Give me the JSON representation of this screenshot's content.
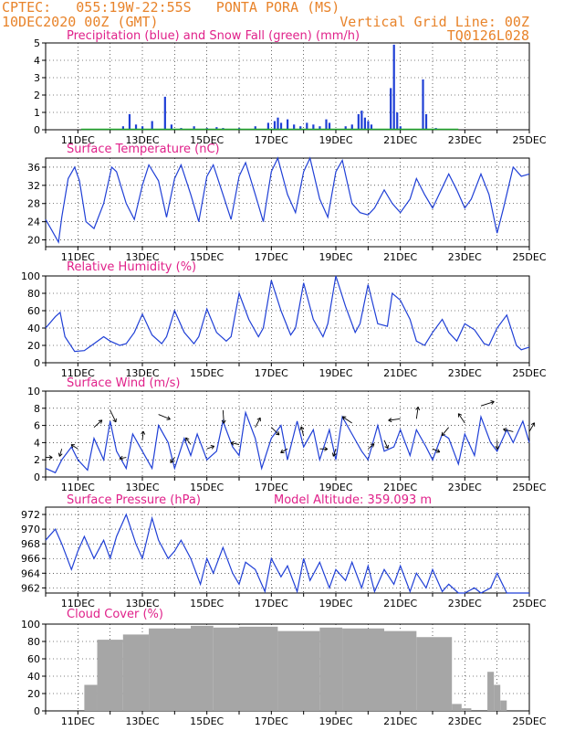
{
  "header": {
    "line1": "CPTEC:   055:19W-22:55S   PONTA PORA (MS)",
    "line2": "10DEC2020 00Z (GMT)",
    "grid_note": "Vertical Grid Line: 00Z",
    "code": "TQ0126L028"
  },
  "colors": {
    "header": "#e8832a",
    "title": "#e0218a",
    "line": "#1f3fd6",
    "precip": "#1f3fd6",
    "snow": "#21a32c",
    "cloud": "#a6a6a6",
    "wind_arrow": "#000000"
  },
  "chart_data": [
    {
      "type": "bar",
      "title": "Precipitation (blue) and Snow Fall (green) (mm/h)",
      "x_tick_labels": [
        "11DEC",
        "13DEC",
        "15DEC",
        "17DEC",
        "19DEC",
        "21DEC",
        "23DEC",
        "25DEC"
      ],
      "y_ticks": [
        0,
        1,
        2,
        3,
        4,
        5
      ],
      "ylim": [
        0,
        5
      ],
      "grid": "dotted",
      "series": [
        {
          "name": "Precipitation",
          "color": "#1f3fd6",
          "values": [
            [
              2.4,
              0.2
            ],
            [
              2.6,
              0.9
            ],
            [
              2.8,
              0.3
            ],
            [
              3.0,
              0.2
            ],
            [
              3.3,
              0.5
            ],
            [
              3.7,
              1.9
            ],
            [
              3.9,
              0.3
            ],
            [
              4.2,
              0.1
            ],
            [
              4.6,
              0.2
            ],
            [
              5.0,
              0.1
            ],
            [
              5.3,
              0.15
            ],
            [
              5.5,
              0.1
            ],
            [
              6.0,
              0.1
            ],
            [
              6.5,
              0.2
            ],
            [
              6.9,
              0.4
            ],
            [
              7.1,
              0.5
            ],
            [
              7.2,
              0.7
            ],
            [
              7.3,
              0.4
            ],
            [
              7.5,
              0.6
            ],
            [
              7.7,
              0.3
            ],
            [
              7.9,
              0.2
            ],
            [
              8.1,
              0.4
            ],
            [
              8.3,
              0.3
            ],
            [
              8.5,
              0.2
            ],
            [
              8.7,
              0.6
            ],
            [
              8.8,
              0.4
            ],
            [
              9.3,
              0.2
            ],
            [
              9.5,
              0.3
            ],
            [
              9.7,
              0.9
            ],
            [
              9.8,
              1.1
            ],
            [
              9.9,
              0.7
            ],
            [
              10.0,
              0.5
            ],
            [
              10.1,
              0.3
            ],
            [
              10.7,
              2.4
            ],
            [
              10.8,
              4.9
            ],
            [
              10.9,
              1.0
            ],
            [
              11.0,
              0.2
            ],
            [
              11.7,
              2.9
            ],
            [
              11.8,
              0.9
            ],
            [
              12.1,
              0.1
            ]
          ]
        },
        {
          "name": "Snow Fall",
          "color": "#21a32c",
          "values": []
        }
      ]
    },
    {
      "type": "line",
      "title": "Surface Temperature (nC)",
      "x_tick_labels": [
        "11DEC",
        "13DEC",
        "15DEC",
        "17DEC",
        "19DEC",
        "21DEC",
        "23DEC",
        "25DEC"
      ],
      "y_ticks": [
        20,
        24,
        28,
        32,
        36
      ],
      "ylim": [
        18.5,
        38
      ],
      "x": [
        0,
        0.2,
        0.4,
        0.5,
        0.7,
        0.9,
        1.05,
        1.25,
        1.5,
        1.8,
        2.05,
        2.2,
        2.5,
        2.75,
        3.0,
        3.2,
        3.5,
        3.75,
        4.0,
        4.2,
        4.5,
        4.75,
        5.0,
        5.2,
        5.5,
        5.75,
        6.0,
        6.2,
        6.5,
        6.75,
        7.0,
        7.2,
        7.5,
        7.75,
        8.0,
        8.2,
        8.5,
        8.75,
        9.0,
        9.2,
        9.5,
        9.75,
        10.0,
        10.2,
        10.5,
        10.75,
        11.0,
        11.3,
        11.5,
        11.75,
        12.0,
        12.2,
        12.5,
        12.75,
        13.0,
        13.2,
        13.5,
        13.75,
        14.0,
        14.2,
        14.5,
        14.75,
        15.0
      ],
      "values": [
        24.5,
        22.0,
        19.5,
        25.0,
        33.5,
        36.0,
        33.0,
        24.0,
        22.5,
        28.0,
        36.0,
        35.0,
        28.0,
        24.5,
        32.0,
        36.5,
        33.0,
        25.0,
        33.5,
        36.5,
        30.0,
        24.0,
        34.0,
        36.5,
        30.0,
        24.5,
        34.0,
        37.0,
        30.0,
        24.0,
        35.0,
        38.0,
        30.0,
        26.0,
        35.0,
        38.0,
        29.0,
        25.0,
        35.0,
        37.5,
        28.0,
        26.0,
        25.5,
        27.0,
        31.0,
        28.0,
        26.0,
        29.0,
        33.5,
        30.0,
        27.0,
        30.0,
        34.5,
        31.0,
        27.0,
        29.0,
        34.5,
        30.0,
        21.5,
        27.0,
        36.0,
        34.0,
        34.5
      ]
    },
    {
      "type": "line",
      "title": "Relative Humidity (%)",
      "x_tick_labels": [
        "11DEC",
        "13DEC",
        "15DEC",
        "17DEC",
        "19DEC",
        "21DEC",
        "23DEC",
        "25DEC"
      ],
      "y_ticks": [
        0,
        20,
        40,
        60,
        80,
        100
      ],
      "ylim": [
        0,
        100
      ],
      "x": [
        0,
        0.3,
        0.45,
        0.6,
        0.9,
        1.2,
        1.5,
        1.8,
        2.0,
        2.3,
        2.5,
        2.75,
        3.0,
        3.3,
        3.6,
        3.75,
        4.0,
        4.3,
        4.6,
        4.75,
        5.0,
        5.3,
        5.6,
        5.75,
        6.0,
        6.3,
        6.6,
        6.75,
        7.0,
        7.3,
        7.6,
        7.75,
        8.0,
        8.3,
        8.6,
        8.75,
        9.0,
        9.3,
        9.6,
        9.75,
        10.0,
        10.3,
        10.6,
        10.75,
        11.0,
        11.3,
        11.5,
        11.75,
        12.0,
        12.3,
        12.5,
        12.75,
        13.0,
        13.3,
        13.6,
        13.75,
        14.0,
        14.3,
        14.6,
        14.75,
        15.0
      ],
      "values": [
        40,
        53,
        58,
        30,
        13,
        14,
        22,
        30,
        25,
        20,
        22,
        35,
        56,
        32,
        22,
        30,
        60,
        35,
        22,
        30,
        62,
        35,
        25,
        30,
        80,
        50,
        30,
        40,
        95,
        60,
        32,
        40,
        92,
        50,
        30,
        45,
        100,
        65,
        35,
        45,
        90,
        45,
        42,
        80,
        72,
        50,
        25,
        20,
        35,
        50,
        35,
        25,
        45,
        38,
        22,
        20,
        40,
        55,
        20,
        15,
        18
      ]
    },
    {
      "type": "line",
      "title": "Surface Wind (m/s)",
      "x_tick_labels": [
        "11DEC",
        "13DEC",
        "15DEC",
        "17DEC",
        "19DEC",
        "21DEC",
        "23DEC",
        "25DEC"
      ],
      "y_ticks": [
        0,
        2,
        4,
        6,
        8,
        10
      ],
      "ylim": [
        0,
        10
      ],
      "x": [
        0,
        0.3,
        0.5,
        0.8,
        1.0,
        1.3,
        1.5,
        1.8,
        2.0,
        2.2,
        2.5,
        2.7,
        3.0,
        3.3,
        3.5,
        3.8,
        4.0,
        4.3,
        4.5,
        4.7,
        5.0,
        5.3,
        5.5,
        5.8,
        6.0,
        6.2,
        6.5,
        6.7,
        7.0,
        7.3,
        7.5,
        7.8,
        8.0,
        8.3,
        8.5,
        8.8,
        9.0,
        9.2,
        9.5,
        9.8,
        10.0,
        10.3,
        10.5,
        10.8,
        11.0,
        11.3,
        11.5,
        11.8,
        12.0,
        12.3,
        12.5,
        12.8,
        13.0,
        13.3,
        13.5,
        13.8,
        14.0,
        14.3,
        14.5,
        14.8,
        15.0
      ],
      "values": [
        1.0,
        0.5,
        2.0,
        3.5,
        2.0,
        0.8,
        4.5,
        2.0,
        6.5,
        3.0,
        1.0,
        5.0,
        3.0,
        1.0,
        6.0,
        4.0,
        1.0,
        4.5,
        2.5,
        5.0,
        2.0,
        3.0,
        6.5,
        3.5,
        2.5,
        7.5,
        4.5,
        1.0,
        4.5,
        6.0,
        2.0,
        6.5,
        3.5,
        5.5,
        2.0,
        5.5,
        2.0,
        7.0,
        5.0,
        3.0,
        2.0,
        6.0,
        3.0,
        3.5,
        5.5,
        2.5,
        5.5,
        3.5,
        2.0,
        5.0,
        4.5,
        1.5,
        5.0,
        2.5,
        7.0,
        4.0,
        3.0,
        5.5,
        4.0,
        6.5,
        4.0
      ],
      "arrows": "wind direction arrows plotted along the series"
    },
    {
      "type": "line",
      "title": "Surface Pressure (hPa)",
      "annotation": "Model Altitude: 359.093 m",
      "x_tick_labels": [
        "11DEC",
        "13DEC",
        "15DEC",
        "17DEC",
        "19DEC",
        "21DEC",
        "23DEC",
        "25DEC"
      ],
      "y_ticks": [
        962,
        964,
        966,
        968,
        970,
        972
      ],
      "ylim": [
        961.3,
        973
      ],
      "x": [
        0,
        0.3,
        0.5,
        0.8,
        1.0,
        1.2,
        1.5,
        1.8,
        2.0,
        2.2,
        2.5,
        2.8,
        3.0,
        3.3,
        3.5,
        3.8,
        4.0,
        4.2,
        4.5,
        4.8,
        5.0,
        5.2,
        5.5,
        5.8,
        6.0,
        6.2,
        6.5,
        6.8,
        7.0,
        7.3,
        7.5,
        7.8,
        8.0,
        8.2,
        8.5,
        8.8,
        9.0,
        9.3,
        9.5,
        9.8,
        10.0,
        10.2,
        10.5,
        10.8,
        11.0,
        11.3,
        11.5,
        11.8,
        12.0,
        12.3,
        12.5,
        12.8,
        13.0,
        13.3,
        13.5,
        13.8,
        14.0,
        14.3,
        14.5,
        14.8,
        15.0
      ],
      "values": [
        968.5,
        970.0,
        968.0,
        964.5,
        967.0,
        969.0,
        966.0,
        968.5,
        966.0,
        969.0,
        972.0,
        968.0,
        966.0,
        971.5,
        968.5,
        966.0,
        967.0,
        968.5,
        966.0,
        962.5,
        966.0,
        964.0,
        967.5,
        964.0,
        962.5,
        965.5,
        964.5,
        961.5,
        966.0,
        963.5,
        965.0,
        961.5,
        966.0,
        963.0,
        965.5,
        962.0,
        964.5,
        963.0,
        965.5,
        962.0,
        965.0,
        961.5,
        964.5,
        962.5,
        965.0,
        961.5,
        964.0,
        962.0,
        964.5,
        961.5,
        962.5,
        961.0,
        961.0,
        962.0,
        961.3,
        962.0,
        964.0,
        961.3,
        961.0,
        961.0,
        961.0
      ]
    },
    {
      "type": "bar",
      "title": "Cloud Cover (%)",
      "x_tick_labels": [
        "11DEC",
        "13DEC",
        "15DEC",
        "17DEC",
        "19DEC",
        "21DEC",
        "23DEC",
        "25DEC"
      ],
      "y_ticks": [
        0,
        20,
        40,
        60,
        80,
        100
      ],
      "ylim": [
        0,
        100
      ],
      "color": "#a6a6a6",
      "segments": [
        {
          "x_start": 1.2,
          "x_end": 1.6,
          "value": 30
        },
        {
          "x_start": 1.6,
          "x_end": 2.4,
          "value": 82
        },
        {
          "x_start": 2.4,
          "x_end": 3.2,
          "value": 88
        },
        {
          "x_start": 3.2,
          "x_end": 4.5,
          "value": 95
        },
        {
          "x_start": 4.5,
          "x_end": 5.2,
          "value": 98
        },
        {
          "x_start": 5.2,
          "x_end": 6.0,
          "value": 96
        },
        {
          "x_start": 6.0,
          "x_end": 7.2,
          "value": 97
        },
        {
          "x_start": 7.2,
          "x_end": 8.5,
          "value": 92
        },
        {
          "x_start": 8.5,
          "x_end": 9.2,
          "value": 96
        },
        {
          "x_start": 9.2,
          "x_end": 10.5,
          "value": 95
        },
        {
          "x_start": 10.5,
          "x_end": 11.5,
          "value": 92
        },
        {
          "x_start": 11.5,
          "x_end": 12.6,
          "value": 85
        },
        {
          "x_start": 12.6,
          "x_end": 12.9,
          "value": 8
        },
        {
          "x_start": 12.9,
          "x_end": 13.2,
          "value": 3
        },
        {
          "x_start": 13.7,
          "x_end": 13.9,
          "value": 45
        },
        {
          "x_start": 13.9,
          "x_end": 14.1,
          "value": 30
        },
        {
          "x_start": 14.1,
          "x_end": 14.3,
          "value": 12
        }
      ]
    }
  ]
}
